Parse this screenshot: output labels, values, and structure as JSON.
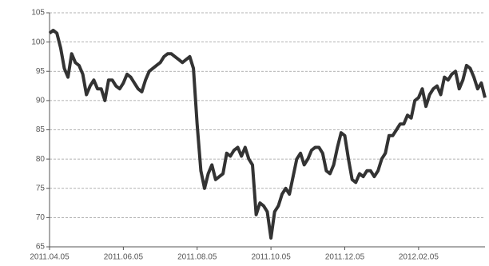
{
  "chart_data": {
    "type": "line",
    "categories": [
      "2011.04.05",
      null,
      null,
      null,
      null,
      null,
      null,
      null,
      null,
      null,
      null,
      null,
      null,
      null,
      null,
      null,
      null,
      null,
      null,
      null,
      "2011.06.05",
      null,
      null,
      null,
      null,
      null,
      null,
      null,
      null,
      null,
      null,
      null,
      null,
      null,
      null,
      null,
      null,
      null,
      null,
      null,
      "2011.08.05",
      null,
      null,
      null,
      null,
      null,
      null,
      null,
      null,
      null,
      null,
      null,
      null,
      null,
      null,
      null,
      null,
      null,
      null,
      null,
      "2011.10.05",
      null,
      null,
      null,
      null,
      null,
      null,
      null,
      null,
      null,
      null,
      null,
      null,
      null,
      null,
      null,
      null,
      null,
      null,
      null,
      "2011.12.05",
      null,
      null,
      null,
      null,
      null,
      null,
      null,
      null,
      null,
      null,
      null,
      null,
      null,
      null,
      null,
      null,
      null,
      null,
      null,
      "2012.02.05",
      null,
      null,
      null,
      null,
      null,
      null,
      null,
      null,
      null,
      null,
      null,
      null,
      null,
      null,
      null,
      null,
      null,
      null
    ],
    "series": [
      {
        "color": "#333333",
        "values": [
          101.5,
          102,
          101.5,
          99,
          95.5,
          94,
          98,
          96.5,
          96,
          94.5,
          91,
          92.5,
          93.5,
          92,
          92,
          90,
          93.5,
          93.5,
          92.5,
          92,
          93,
          94.5,
          94,
          93,
          92,
          91.5,
          93.5,
          95,
          95.5,
          96,
          96.5,
          97.5,
          98,
          98,
          97.5,
          97,
          96.5,
          97,
          97.5,
          95.5,
          86,
          78,
          75,
          77.5,
          79,
          76.5,
          77,
          77.5,
          81,
          80.5,
          81.5,
          82,
          80.5,
          82,
          80,
          79,
          70.5,
          72.5,
          72,
          71,
          66.5,
          71,
          72,
          74,
          75,
          74,
          77,
          80,
          81,
          79,
          80,
          81.5,
          82,
          82,
          81,
          78,
          77.5,
          79,
          82,
          84.5,
          84,
          80,
          76.5,
          76,
          77.5,
          77,
          78,
          78,
          77,
          78,
          80,
          81,
          84,
          84,
          85,
          86,
          86,
          87.5,
          87,
          90,
          90.5,
          92,
          89,
          91,
          92,
          92.5,
          91,
          94,
          93.5,
          94.5,
          95,
          92,
          93.5,
          96,
          95.5,
          94,
          92,
          93,
          90.5
        ]
      }
    ],
    "ylim": [
      65,
      105
    ],
    "yticks": [
      65,
      70,
      75,
      80,
      85,
      90,
      95,
      100,
      105
    ],
    "grid": true
  }
}
